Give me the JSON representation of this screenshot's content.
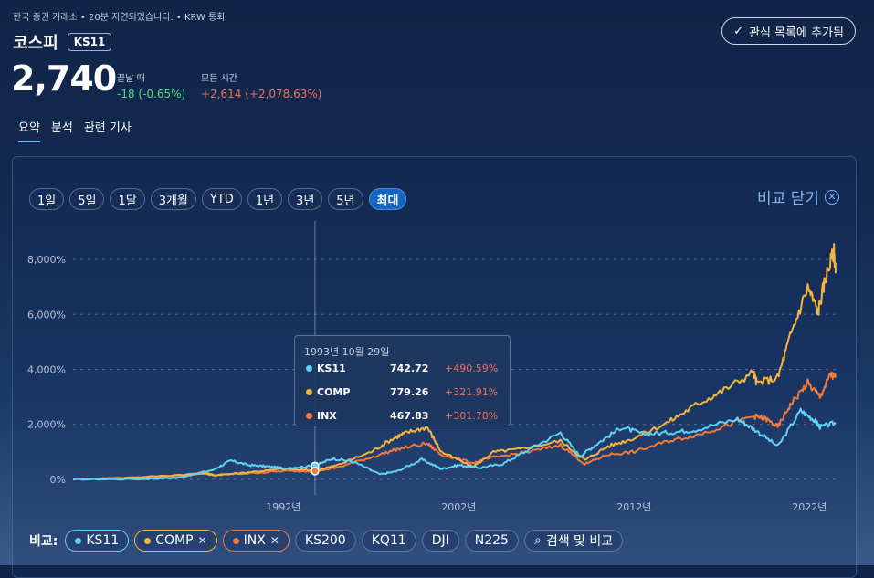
{
  "header": {
    "note": "한국 증권 거래소 • 20분 지연되었습니다. • KRW 통화",
    "title": "코스피",
    "ticker": "KS11",
    "watch_label": "관심 목록에 추가됨",
    "price": "2,740",
    "prev_label": "끝날 때",
    "prev_change": "-18 (-0.65%)",
    "all_label": "모든 시간",
    "all_change": "+2,614 (+2,078.63%)"
  },
  "tabs": [
    "요약",
    "분석",
    "관련 기사"
  ],
  "ranges": [
    "1일",
    "5일",
    "1달",
    "3개월",
    "YTD",
    "1년",
    "3년",
    "5년",
    "최대"
  ],
  "active_range": "최대",
  "close_compare": "비교 닫기",
  "tooltip": {
    "date": "1993년 10월 29일",
    "rows": [
      {
        "name": "KS11",
        "value": "742.72",
        "pct": "+490.59%",
        "color": "#5fd3f3"
      },
      {
        "name": "COMP",
        "value": "779.26",
        "pct": "+321.91%",
        "color": "#f5b43c"
      },
      {
        "name": "INX",
        "value": "467.83",
        "pct": "+301.78%",
        "color": "#f07a3a"
      }
    ]
  },
  "compare": {
    "label": "비교:",
    "chips": [
      "KS11",
      "COMP",
      "INX",
      "KS200",
      "KQ11",
      "DJI",
      "N225"
    ],
    "search": "검색 및 비교"
  },
  "chart_data": {
    "type": "line",
    "y_ticks": [
      "8,000%",
      "6,000%",
      "4,000%",
      "2,000%",
      "0%"
    ],
    "x_ticks": [
      "1992년",
      "2002년",
      "2012년",
      "2022년"
    ],
    "ylim": [
      -500,
      8800
    ],
    "xlim": [
      1980,
      2023.6
    ],
    "grid": true,
    "series": [
      {
        "name": "KS11",
        "color": "#5fd3f3",
        "points": [
          [
            1980,
            0
          ],
          [
            1984,
            10
          ],
          [
            1986,
            60
          ],
          [
            1988,
            350
          ],
          [
            1989,
            680
          ],
          [
            1990,
            520
          ],
          [
            1991,
            470
          ],
          [
            1992,
            410
          ],
          [
            1993.8,
            490
          ],
          [
            1994.8,
            760
          ],
          [
            1996,
            640
          ],
          [
            1997.5,
            180
          ],
          [
            1998.5,
            300
          ],
          [
            1999.9,
            720
          ],
          [
            2001,
            380
          ],
          [
            2002,
            520
          ],
          [
            2003.2,
            420
          ],
          [
            2004.5,
            560
          ],
          [
            2005.9,
            1050
          ],
          [
            2007.8,
            1700
          ],
          [
            2008.9,
            840
          ],
          [
            2009.9,
            1300
          ],
          [
            2011.3,
            1900
          ],
          [
            2012.5,
            1650
          ],
          [
            2014,
            1700
          ],
          [
            2015.5,
            1800
          ],
          [
            2017.9,
            2200
          ],
          [
            2018.9,
            1800
          ],
          [
            2020.2,
            1200
          ],
          [
            2021.5,
            2500
          ],
          [
            2022.3,
            2150
          ],
          [
            2022.6,
            1900
          ],
          [
            2023.5,
            2050
          ]
        ]
      },
      {
        "name": "COMP",
        "color": "#f5b43c",
        "points": [
          [
            1980,
            0
          ],
          [
            1984,
            80
          ],
          [
            1987.6,
            230
          ],
          [
            1988,
            150
          ],
          [
            1990,
            260
          ],
          [
            1992,
            380
          ],
          [
            1993.8,
            322
          ],
          [
            1995,
            500
          ],
          [
            1997,
            1000
          ],
          [
            1998.3,
            1500
          ],
          [
            1999,
            1700
          ],
          [
            2000.2,
            1900
          ],
          [
            2001,
            1000
          ],
          [
            2002.8,
            450
          ],
          [
            2004,
            1000
          ],
          [
            2005.5,
            1100
          ],
          [
            2007.8,
            1400
          ],
          [
            2009.2,
            700
          ],
          [
            2010.5,
            1200
          ],
          [
            2012,
            1500
          ],
          [
            2014,
            2100
          ],
          [
            2015.5,
            2700
          ],
          [
            2017,
            3200
          ],
          [
            2018.8,
            3900
          ],
          [
            2019,
            3500
          ],
          [
            2020.2,
            3700
          ],
          [
            2020.9,
            5200
          ],
          [
            2021.9,
            7000
          ],
          [
            2022.5,
            6100
          ],
          [
            2022.9,
            7300
          ],
          [
            2023.4,
            8300
          ],
          [
            2023.5,
            7500
          ]
        ]
      },
      {
        "name": "INX",
        "color": "#f07a3a",
        "points": [
          [
            1980,
            0
          ],
          [
            1984,
            70
          ],
          [
            1987.6,
            210
          ],
          [
            1988,
            150
          ],
          [
            1990,
            220
          ],
          [
            1992,
            300
          ],
          [
            1993.8,
            302
          ],
          [
            1995,
            420
          ],
          [
            1997,
            800
          ],
          [
            1998.5,
            1100
          ],
          [
            2000.2,
            1300
          ],
          [
            2001,
            900
          ],
          [
            2002.8,
            600
          ],
          [
            2004,
            800
          ],
          [
            2006,
            1000
          ],
          [
            2007.8,
            1250
          ],
          [
            2009.2,
            550
          ],
          [
            2010.5,
            900
          ],
          [
            2012,
            1000
          ],
          [
            2014,
            1400
          ],
          [
            2015.5,
            1600
          ],
          [
            2017,
            1900
          ],
          [
            2018.8,
            2300
          ],
          [
            2019.5,
            2200
          ],
          [
            2020.2,
            1900
          ],
          [
            2020.9,
            2700
          ],
          [
            2021.9,
            3500
          ],
          [
            2022.6,
            3000
          ],
          [
            2023.2,
            3800
          ],
          [
            2023.5,
            3700
          ]
        ]
      }
    ]
  }
}
